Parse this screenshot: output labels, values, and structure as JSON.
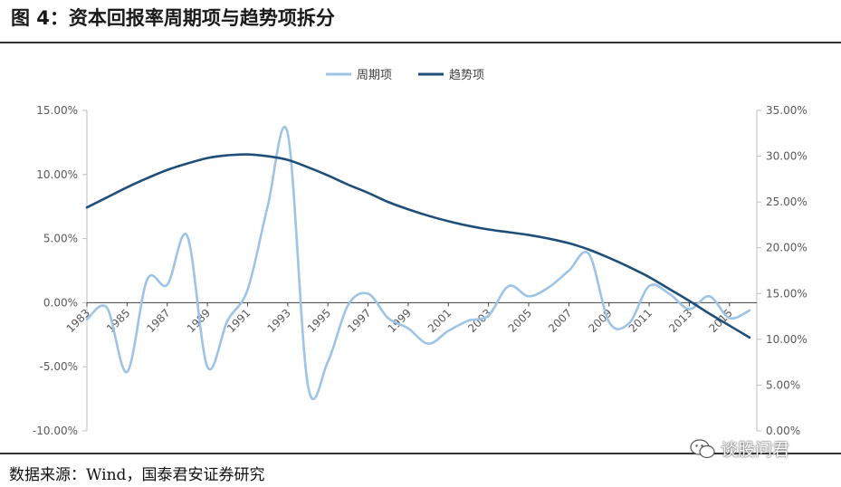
{
  "figure_title": "图  4：资本回报率周期项与趋势项拆分",
  "source_note": "数据来源：Wind，国泰君安证券研究",
  "watermark_text": "谈股问君",
  "chart_data": {
    "type": "line",
    "title": "",
    "xlabel": "",
    "ylabel": "",
    "legend_position": "top-center",
    "grid": false,
    "x": [
      1983,
      1984,
      1985,
      1986,
      1987,
      1988,
      1989,
      1990,
      1991,
      1992,
      1993,
      1994,
      1995,
      1996,
      1997,
      1998,
      1999,
      2000,
      2001,
      2002,
      2003,
      2004,
      2005,
      2006,
      2007,
      2008,
      2009,
      2010,
      2011,
      2012,
      2013,
      2014,
      2015,
      2016
    ],
    "x_tick_labels": [
      "1983",
      "1985",
      "1987",
      "1989",
      "1991",
      "1993",
      "1995",
      "1997",
      "1999",
      "2001",
      "2003",
      "2005",
      "2007",
      "2009",
      "2011",
      "2013",
      "2015"
    ],
    "y_left": {
      "ylim": [
        -10,
        15
      ],
      "tick_labels": [
        "15.00%",
        "10.00%",
        "5.00%",
        "0.00%",
        "-5.00%",
        "-10.00%"
      ]
    },
    "y_right": {
      "ylim": [
        0,
        35
      ],
      "tick_labels": [
        "35.00%",
        "30.00%",
        "25.00%",
        "20.00%",
        "15.00%",
        "10.00%",
        "5.00%",
        "0.00%"
      ]
    },
    "series": [
      {
        "name": "周期项",
        "axis": "left",
        "color": "#9dc3e6",
        "values": [
          -1.3,
          -0.4,
          -5.4,
          1.8,
          1.4,
          5.2,
          -5.0,
          -1.4,
          1.0,
          7.5,
          13.2,
          -6.4,
          -4.6,
          -0.2,
          0.7,
          -1.2,
          -2.0,
          -3.2,
          -2.2,
          -1.4,
          -1.0,
          1.3,
          0.5,
          1.2,
          2.5,
          3.8,
          -1.5,
          -1.6,
          1.3,
          0.7,
          -0.5,
          0.5,
          -1.2,
          -0.6
        ]
      },
      {
        "name": "趋势项",
        "axis": "right",
        "color": "#1f4e79",
        "values": [
          24.4,
          25.5,
          26.6,
          27.6,
          28.5,
          29.2,
          29.8,
          30.1,
          30.2,
          30.0,
          29.6,
          28.8,
          27.9,
          26.9,
          26.0,
          25.0,
          24.2,
          23.5,
          22.9,
          22.4,
          22.0,
          21.7,
          21.4,
          21.0,
          20.5,
          19.8,
          18.9,
          17.9,
          16.8,
          15.5,
          14.2,
          12.8,
          11.5,
          10.2
        ]
      }
    ]
  }
}
